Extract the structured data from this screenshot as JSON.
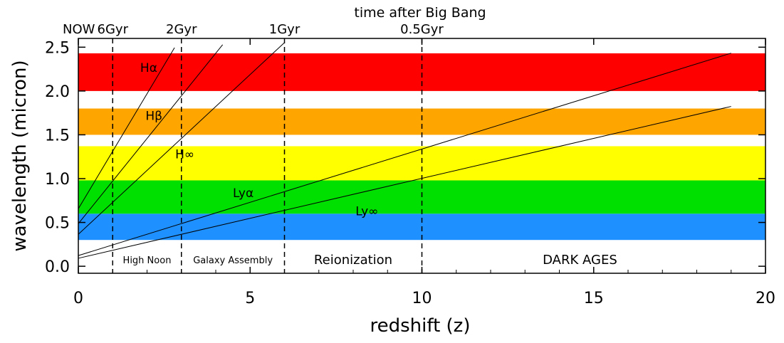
{
  "chart_data": {
    "type": "line",
    "xlabel": "redshift (z)",
    "ylabel": "wavelength (micron)",
    "top_axis_title": "time after Big Bang",
    "xlim": [
      0,
      20
    ],
    "ylim": [
      -0.08,
      2.6
    ],
    "x_ticks": [
      0,
      5,
      10,
      15,
      20
    ],
    "x_tick_labels": [
      "0",
      "5",
      "10",
      "15",
      "20"
    ],
    "y_ticks": [
      0.0,
      0.5,
      1.0,
      1.5,
      2.0,
      2.5
    ],
    "y_tick_labels": [
      "0.0",
      "0.5",
      "1.0",
      "1.5",
      "2.0",
      "2.5"
    ],
    "grid": false,
    "bands": [
      {
        "ymin": 0.3,
        "ymax": 0.6,
        "color": "#1e90ff"
      },
      {
        "ymin": 0.6,
        "ymax": 0.98,
        "color": "#00e000"
      },
      {
        "ymin": 0.98,
        "ymax": 1.37,
        "color": "#ffff00"
      },
      {
        "ymin": 1.5,
        "ymax": 1.8,
        "color": "#ffa500"
      },
      {
        "ymin": 2.0,
        "ymax": 2.43,
        "color": "#ff0000"
      }
    ],
    "time_markers": [
      {
        "z": 0,
        "label": "NOW",
        "dashed": false
      },
      {
        "z": 1,
        "label": "6Gyr",
        "dashed": true
      },
      {
        "z": 3,
        "label": "2Gyr",
        "dashed": true
      },
      {
        "z": 6,
        "label": "1Gyr",
        "dashed": true
      },
      {
        "z": 10,
        "label": "0.5Gyr",
        "dashed": true
      }
    ],
    "eras": [
      {
        "label": "High Noon",
        "x": 2.0,
        "size": "small"
      },
      {
        "label": "Galaxy Assembly",
        "x": 4.5,
        "size": "small"
      },
      {
        "label": "Reionization",
        "x": 8.0,
        "size": "big"
      },
      {
        "label": "DARK AGES",
        "x": 14.6,
        "size": "big"
      }
    ],
    "series": [
      {
        "name": "Hα",
        "rest_wavelength": 0.6563,
        "x": [
          0,
          2.8
        ],
        "y": [
          0.656,
          2.494
        ],
        "label_x": 2.05,
        "label_y": 2.22
      },
      {
        "name": "Hβ",
        "rest_wavelength": 0.4861,
        "x": [
          0,
          4.2
        ],
        "y": [
          0.486,
          2.528
        ],
        "label_x": 2.2,
        "label_y": 1.67
      },
      {
        "name": "H∞",
        "rest_wavelength": 0.3646,
        "x": [
          0,
          6.0
        ],
        "y": [
          0.365,
          2.552
        ],
        "label_x": 3.1,
        "label_y": 1.23
      },
      {
        "name": "Lyα",
        "rest_wavelength": 0.1216,
        "x": [
          0,
          19.0
        ],
        "y": [
          0.122,
          2.432
        ],
        "label_x": 4.8,
        "label_y": 0.79
      },
      {
        "name": "Ly∞",
        "rest_wavelength": 0.0912,
        "x": [
          0,
          19.0
        ],
        "y": [
          0.091,
          1.824
        ],
        "label_x": 8.4,
        "label_y": 0.58
      }
    ]
  }
}
